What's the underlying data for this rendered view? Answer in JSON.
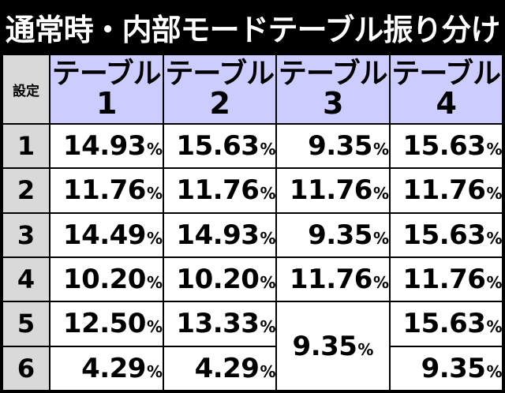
{
  "title": "通常時・内部モードテーブル振り分け",
  "setting_header": "設定",
  "table_headers": [
    {
      "label": "テーブル",
      "num": "1"
    },
    {
      "label": "テーブル",
      "num": "2"
    },
    {
      "label": "テーブル",
      "num": "3"
    },
    {
      "label": "テーブル",
      "num": "4"
    }
  ],
  "percent_sign": "%",
  "rows": [
    {
      "setting": "1",
      "values": [
        "14.93",
        "15.63",
        "9.35",
        "15.63"
      ]
    },
    {
      "setting": "2",
      "values": [
        "11.76",
        "11.76",
        "11.76",
        "11.76"
      ]
    },
    {
      "setting": "3",
      "values": [
        "14.49",
        "14.93",
        "9.35",
        "15.63"
      ]
    },
    {
      "setting": "4",
      "values": [
        "10.20",
        "10.20",
        "11.76",
        "11.76"
      ]
    },
    {
      "setting": "5",
      "values": [
        "12.50",
        "13.33",
        "9.35",
        "15.63"
      ]
    },
    {
      "setting": "6",
      "values": [
        "4.29",
        "4.29",
        "9.35",
        "9.35"
      ]
    }
  ],
  "colors": {
    "header_bg": "#ccccff",
    "label_bg": "#d9d9d9",
    "cell_bg": "#ffffff",
    "background": "#000000"
  }
}
